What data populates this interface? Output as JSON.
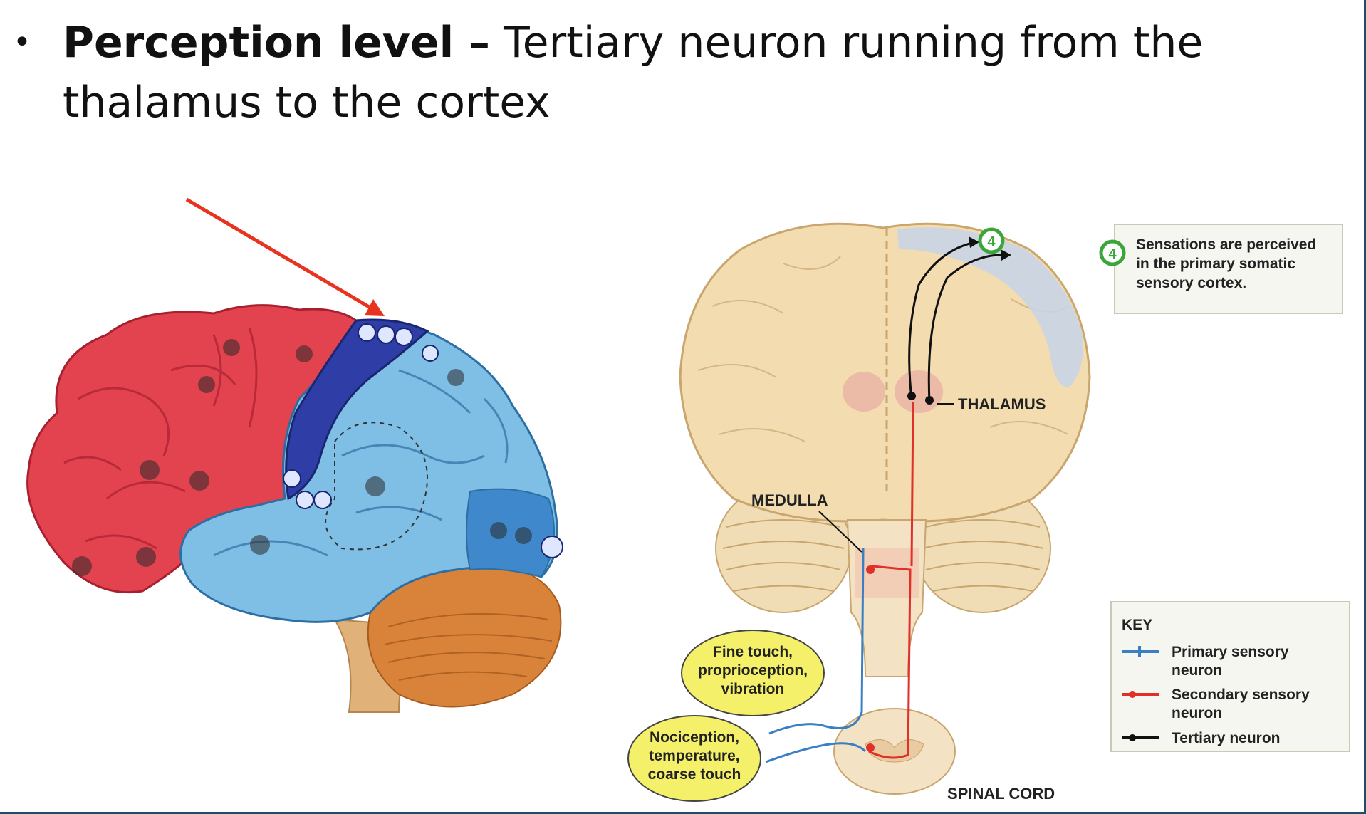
{
  "heading": {
    "bullet": "•",
    "bold": "Perception level –",
    "rest": " Tertiary neuron running from the thalamus to the cortex"
  },
  "diagram": {
    "labels": {
      "thalamus": "THALAMUS",
      "medulla": "MEDULLA",
      "spinal_cord": "SPINAL CORD"
    },
    "step": {
      "number": "4",
      "line1": "Sensations are perceived",
      "line2": "in the primary somatic",
      "line3": "sensory cortex."
    },
    "bubbles": {
      "fine_touch_1": "Fine touch,",
      "fine_touch_2": "proprioception,",
      "fine_touch_3": "vibration",
      "noci_1": "Nociception,",
      "noci_2": "temperature,",
      "noci_3": "coarse touch"
    },
    "key": {
      "title": "KEY",
      "primary_1": "Primary sensory",
      "primary_2": "neuron",
      "secondary_1": "Secondary sensory",
      "secondary_2": "neuron",
      "tertiary": "Tertiary neuron"
    },
    "colors": {
      "frontal": "#e2434f",
      "parietal": "#4f9fd6",
      "sensory_strip": "#2e3ea6",
      "cerebellum": "#d9833a",
      "brain_beige": "#f2dcb0",
      "primary": "#3a7fc4",
      "secondary": "#e0302a",
      "tertiary": "#111111",
      "marker_green": "#3aa63a",
      "arrow": "#e8341f"
    }
  }
}
